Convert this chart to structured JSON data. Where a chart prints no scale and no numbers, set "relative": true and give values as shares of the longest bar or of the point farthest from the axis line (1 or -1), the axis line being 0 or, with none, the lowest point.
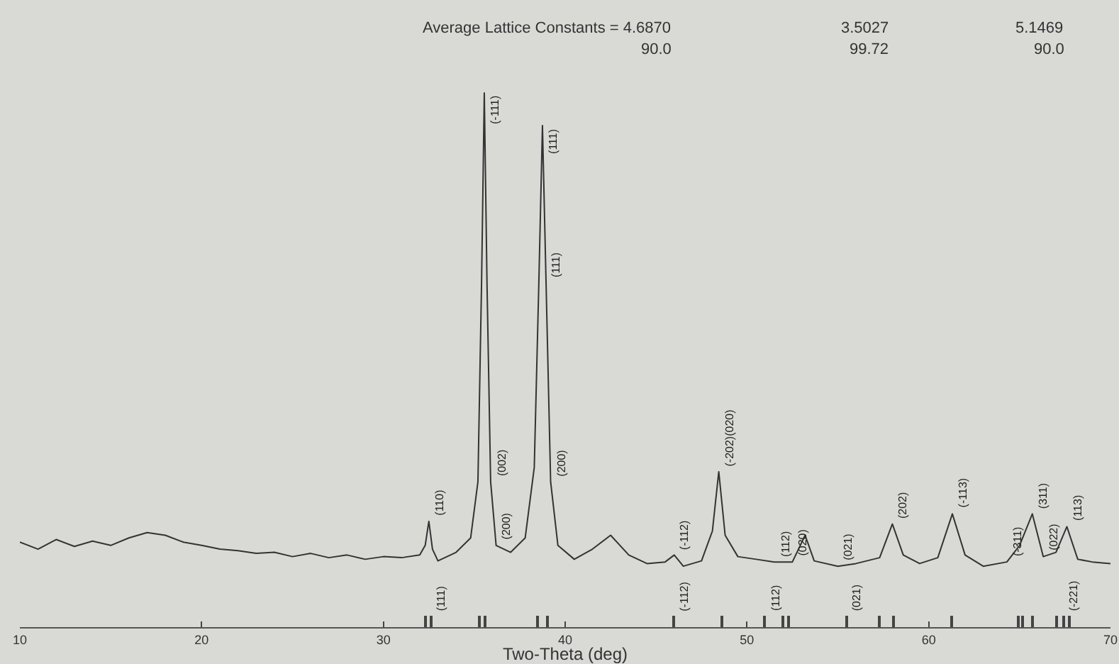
{
  "chart_data": {
    "type": "line",
    "relative": true,
    "xlabel": "Two-Theta (deg)",
    "xlim": [
      10,
      70
    ],
    "xticks": [
      10,
      20,
      30,
      40,
      50,
      60,
      70
    ],
    "legend": false,
    "grid": false,
    "annotations": [
      "Average Lattice Constants = 4.6870",
      "3.5027",
      "5.1469",
      "90.0",
      "99.72",
      "90.0",
      {
        "text": "(110)",
        "x": 32.5,
        "y": 0.198
      },
      {
        "text": "(111)",
        "x": 32.6,
        "y": 0.02
      },
      {
        "text": "(-111)",
        "x": 35.55,
        "y": 1.0
      },
      {
        "text": "(002)",
        "x": 35.9,
        "y": 0.272
      },
      {
        "text": "(200)",
        "x": 36.2,
        "y": 0.153
      },
      {
        "text": "(111)",
        "x": 38.75,
        "y": 0.939
      },
      {
        "text": "(111)",
        "x": 38.95,
        "y": 0.643
      },
      {
        "text": "(200)",
        "x": 39.2,
        "y": 0.272
      },
      {
        "text": "(-112)",
        "x": 46.0,
        "y": 0.135
      },
      {
        "text": "(-112)",
        "x": 46.0,
        "y": 0.02
      },
      {
        "text": "(-202)(020)",
        "x": 48.45,
        "y": 0.291
      },
      {
        "text": "(112)",
        "x": 51.5,
        "y": 0.122
      },
      {
        "text": "(112)",
        "x": 51.0,
        "y": 0.02
      },
      {
        "text": "(020)",
        "x": 52.5,
        "y": 0.122
      },
      {
        "text": "(021)",
        "x": 55,
        "y": 0.114
      },
      {
        "text": "(021)",
        "x": 55.5,
        "y": 0.02
      },
      {
        "text": "(202)",
        "x": 58.0,
        "y": 0.193
      },
      {
        "text": "(-113)",
        "x": 61.3,
        "y": 0.212
      },
      {
        "text": "(-311)",
        "x": 64.3,
        "y": 0.122
      },
      {
        "text": "(311)",
        "x": 65.7,
        "y": 0.212
      },
      {
        "text": "(022)",
        "x": 66.3,
        "y": 0.132
      },
      {
        "text": "(113)",
        "x": 67.6,
        "y": 0.188
      },
      {
        "text": "(-221)",
        "x": 67.4,
        "y": 0.02
      }
    ],
    "series": [
      {
        "color": "#333333",
        "x": [
          10,
          11,
          12,
          13,
          14,
          15,
          16,
          17,
          18,
          19,
          20,
          21,
          22,
          23,
          24,
          25,
          26,
          27,
          28,
          29,
          30,
          31,
          32,
          32.3,
          32.5,
          32.7,
          33,
          34,
          34.8,
          35.2,
          35.4,
          35.55,
          35.7,
          35.9,
          36.2,
          37,
          37.8,
          38.3,
          38.55,
          38.75,
          38.95,
          39.2,
          39.6,
          40.5,
          41.5,
          42.5,
          43.5,
          44.5,
          45.5,
          46.0,
          46.5,
          47.5,
          48.1,
          48.45,
          48.8,
          49.5,
          50.5,
          51.5,
          52.5,
          53.2,
          53.7,
          55,
          56,
          57.3,
          58.0,
          58.6,
          59.5,
          60.5,
          61.3,
          62,
          63,
          64.3,
          65.0,
          65.7,
          66.3,
          67.0,
          67.6,
          68.2,
          69,
          70
        ],
        "values": [
          0.159,
          0.146,
          0.164,
          0.151,
          0.161,
          0.153,
          0.167,
          0.177,
          0.172,
          0.159,
          0.153,
          0.146,
          0.143,
          0.138,
          0.14,
          0.132,
          0.138,
          0.13,
          0.135,
          0.127,
          0.132,
          0.13,
          0.135,
          0.153,
          0.198,
          0.146,
          0.124,
          0.14,
          0.167,
          0.272,
          0.643,
          1.0,
          0.643,
          0.272,
          0.153,
          0.14,
          0.167,
          0.299,
          0.643,
          0.939,
          0.643,
          0.272,
          0.153,
          0.127,
          0.146,
          0.172,
          0.135,
          0.119,
          0.122,
          0.135,
          0.114,
          0.124,
          0.18,
          0.291,
          0.172,
          0.132,
          0.127,
          0.122,
          0.122,
          0.172,
          0.124,
          0.114,
          0.119,
          0.13,
          0.193,
          0.135,
          0.119,
          0.13,
          0.212,
          0.135,
          0.114,
          0.122,
          0.153,
          0.212,
          0.132,
          0.14,
          0.188,
          0.127,
          0.122,
          0.119
        ]
      },
      {
        "type": "bar",
        "color": "#444444",
        "x": [
          32.3,
          32.6,
          35.3,
          35.6,
          38.5,
          39.0,
          46.0,
          48.6,
          51.0,
          52.0,
          52.3,
          55.5,
          57.3,
          58.1,
          61.3,
          64.9,
          65.2,
          65.7,
          67.0,
          67.4,
          67.7
        ],
        "values": [
          0.02,
          0.02,
          0.02,
          0.02,
          0.02,
          0.02,
          0.02,
          0.02,
          0.02,
          0.02,
          0.02,
          0.02,
          0.02,
          0.02,
          0.02,
          0.02,
          0.02,
          0.02,
          0.02,
          0.02,
          0.02
        ]
      }
    ]
  }
}
